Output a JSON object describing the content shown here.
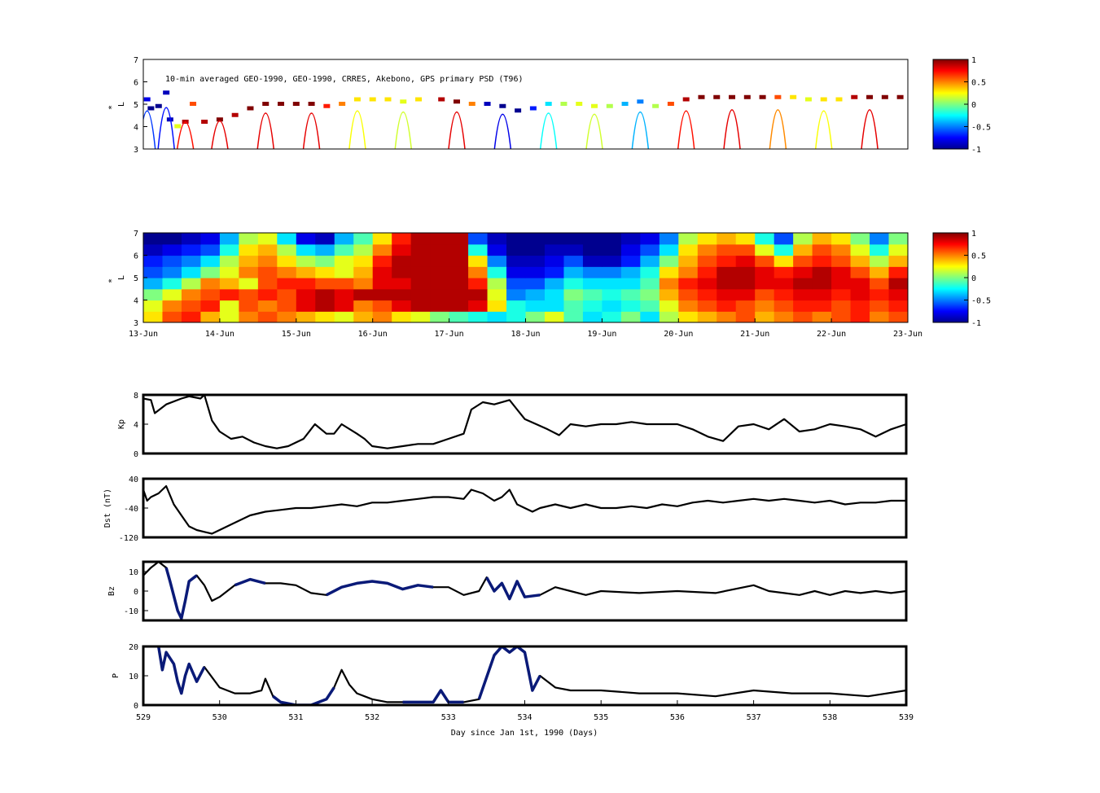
{
  "figure": {
    "annotation": "10-min averaged GEO-1990, GEO-1990, CRRES, Akebono, GPS  primary PSD (T96)",
    "xlabel_bottom": "Day since Jan 1st, 1990 (Days)"
  },
  "colors": {
    "line": "#000000",
    "highlight_series": "#0a1a78",
    "colormap": [
      "#00008f",
      "#0000ff",
      "#00ffff",
      "#ffff00",
      "#ff0000",
      "#800000"
    ]
  },
  "chart_data": [
    {
      "type": "scatter",
      "id": "psd-observed",
      "ylabel": "L*",
      "ylabel_parts": {
        "star": "*",
        "l": "L"
      },
      "ylim": [
        3,
        7
      ],
      "yticks": [
        "3",
        "4",
        "5",
        "6",
        "7"
      ],
      "xlim": [
        529,
        539
      ],
      "colorbar": {
        "range": [
          -1,
          1
        ],
        "ticks": [
          "1",
          "0.5",
          "0",
          "-0.5",
          "-1"
        ]
      },
      "note": "Colored points along satellite orbit tracks; values are normalized PSD in [-1,1]",
      "points": [
        [
          529.05,
          5.2,
          -0.8
        ],
        [
          529.1,
          4.8,
          -1
        ],
        [
          529.2,
          4.9,
          -1
        ],
        [
          529.3,
          5.5,
          -0.9
        ],
        [
          529.35,
          4.3,
          -0.9
        ],
        [
          529.45,
          4.0,
          0.2
        ],
        [
          529.55,
          4.2,
          0.9
        ],
        [
          529.65,
          5.0,
          0.6
        ],
        [
          529.8,
          4.2,
          0.9
        ],
        [
          530.0,
          4.3,
          1
        ],
        [
          530.2,
          4.5,
          0.9
        ],
        [
          530.4,
          4.8,
          1
        ],
        [
          530.6,
          5.0,
          1
        ],
        [
          530.8,
          5.0,
          1
        ],
        [
          531.0,
          5.0,
          1
        ],
        [
          531.2,
          5.0,
          1
        ],
        [
          531.4,
          4.9,
          0.7
        ],
        [
          531.6,
          5.0,
          0.5
        ],
        [
          531.8,
          5.2,
          0.3
        ],
        [
          532.0,
          5.2,
          0.3
        ],
        [
          532.2,
          5.2,
          0.3
        ],
        [
          532.4,
          5.1,
          0.2
        ],
        [
          532.6,
          5.2,
          0.3
        ],
        [
          532.9,
          5.2,
          0.9
        ],
        [
          533.1,
          5.1,
          1
        ],
        [
          533.3,
          5.0,
          0.5
        ],
        [
          533.5,
          5.0,
          -0.9
        ],
        [
          533.7,
          4.9,
          -1
        ],
        [
          533.9,
          4.7,
          -1
        ],
        [
          534.1,
          4.8,
          -0.7
        ],
        [
          534.3,
          5.0,
          -0.3
        ],
        [
          534.5,
          5.0,
          0.1
        ],
        [
          534.7,
          5.0,
          0.2
        ],
        [
          534.9,
          4.9,
          0.2
        ],
        [
          535.1,
          4.9,
          0.1
        ],
        [
          535.3,
          5.0,
          -0.4
        ],
        [
          535.5,
          5.1,
          -0.5
        ],
        [
          535.7,
          4.9,
          0.1
        ],
        [
          535.9,
          5.0,
          0.6
        ],
        [
          536.1,
          5.2,
          0.9
        ],
        [
          536.3,
          5.3,
          1
        ],
        [
          536.5,
          5.3,
          1
        ],
        [
          536.7,
          5.3,
          1
        ],
        [
          536.9,
          5.3,
          1
        ],
        [
          537.1,
          5.3,
          1
        ],
        [
          537.3,
          5.3,
          0.6
        ],
        [
          537.5,
          5.3,
          0.3
        ],
        [
          537.7,
          5.2,
          0.2
        ],
        [
          537.9,
          5.2,
          0.3
        ],
        [
          538.1,
          5.2,
          0.3
        ],
        [
          538.3,
          5.3,
          0.9
        ],
        [
          538.5,
          5.3,
          1
        ],
        [
          538.7,
          5.3,
          1
        ],
        [
          538.9,
          5.3,
          1
        ]
      ]
    },
    {
      "type": "heatmap",
      "id": "psd-assimilated",
      "ylabel": "L*",
      "ylabel_parts": {
        "star": "*",
        "l": "L"
      },
      "ylim": [
        3,
        7
      ],
      "yticks": [
        "3",
        "4",
        "5",
        "6",
        "7"
      ],
      "xticks": [
        "13-Jun",
        "14-Jun",
        "15-Jun",
        "16-Jun",
        "17-Jun",
        "18-Jun",
        "19-Jun",
        "20-Jun",
        "21-Jun",
        "22-Jun",
        "23-Jun"
      ],
      "colorbar": {
        "range": [
          -1,
          1
        ],
        "ticks": [
          "1",
          "0.5",
          "0",
          "-0.5",
          "-1"
        ]
      },
      "rows_L": [
        3.25,
        3.75,
        4.25,
        4.75,
        5.25,
        5.75,
        6.25,
        6.75
      ],
      "columns": 40,
      "values": [
        [
          0.3,
          0.6,
          0.7,
          0.4,
          0.2,
          0.5,
          0.6,
          0.5,
          0.4,
          0.3,
          0.2,
          0.4,
          0.5,
          0.3,
          0.2,
          0.0,
          -0.1,
          -0.2,
          -0.3,
          -0.2,
          0.0,
          0.2,
          -0.1,
          -0.3,
          -0.2,
          0.0,
          -0.3,
          0.1,
          0.3,
          0.4,
          0.5,
          0.6,
          0.4,
          0.5,
          0.6,
          0.5,
          0.6,
          0.7,
          0.5,
          0.6
        ],
        [
          0.2,
          0.5,
          0.6,
          0.7,
          0.2,
          0.6,
          0.5,
          0.6,
          0.8,
          0.9,
          0.8,
          0.5,
          0.6,
          0.8,
          0.9,
          0.9,
          0.9,
          0.8,
          0.3,
          -0.2,
          -0.3,
          -0.3,
          -0.1,
          -0.2,
          -0.3,
          -0.2,
          -0.1,
          0.2,
          0.5,
          0.6,
          0.7,
          0.6,
          0.5,
          0.6,
          0.7,
          0.7,
          0.6,
          0.7,
          0.6,
          0.7
        ],
        [
          0.0,
          0.2,
          0.5,
          0.6,
          0.7,
          0.6,
          0.7,
          0.6,
          0.8,
          0.9,
          0.8,
          0.9,
          0.9,
          0.9,
          0.9,
          0.9,
          0.9,
          0.9,
          0.2,
          -0.5,
          -0.4,
          -0.3,
          0.0,
          -0.1,
          -0.2,
          -0.1,
          0.0,
          0.4,
          0.6,
          0.7,
          0.8,
          0.8,
          0.6,
          0.7,
          0.8,
          0.8,
          0.7,
          0.8,
          0.7,
          0.8
        ],
        [
          -0.4,
          -0.2,
          0.1,
          0.5,
          0.4,
          0.2,
          0.6,
          0.7,
          0.7,
          0.6,
          0.6,
          0.5,
          0.8,
          0.8,
          0.9,
          0.9,
          0.9,
          0.7,
          0.1,
          -0.6,
          -0.6,
          -0.4,
          -0.2,
          -0.3,
          -0.3,
          -0.3,
          -0.1,
          0.5,
          0.7,
          0.8,
          0.9,
          0.9,
          0.8,
          0.8,
          0.9,
          0.9,
          0.8,
          0.8,
          0.6,
          0.9
        ],
        [
          -0.6,
          -0.5,
          -0.3,
          0.0,
          0.2,
          0.5,
          0.6,
          0.5,
          0.4,
          0.3,
          0.2,
          0.4,
          0.8,
          0.9,
          0.9,
          0.9,
          0.9,
          0.5,
          -0.2,
          -0.8,
          -0.8,
          -0.7,
          -0.4,
          -0.5,
          -0.5,
          -0.4,
          -0.2,
          0.3,
          0.5,
          0.7,
          0.9,
          0.9,
          0.8,
          0.7,
          0.8,
          0.9,
          0.8,
          0.6,
          0.4,
          0.7
        ],
        [
          -0.7,
          -0.6,
          -0.5,
          -0.3,
          0.1,
          0.4,
          0.5,
          0.3,
          0.1,
          0.0,
          0.2,
          0.3,
          0.7,
          0.9,
          0.9,
          0.9,
          0.9,
          0.3,
          -0.5,
          -0.9,
          -0.9,
          -0.8,
          -0.6,
          -0.9,
          -0.9,
          -0.7,
          -0.4,
          0.0,
          0.4,
          0.6,
          0.7,
          0.8,
          0.6,
          0.3,
          0.6,
          0.7,
          0.6,
          0.4,
          0.1,
          0.4
        ],
        [
          -0.9,
          -0.8,
          -0.7,
          -0.6,
          -0.2,
          0.3,
          0.4,
          0.1,
          -0.3,
          -0.4,
          -0.1,
          0.1,
          0.5,
          0.8,
          0.9,
          0.9,
          0.9,
          -0.2,
          -0.8,
          -1.0,
          -1.0,
          -0.9,
          -0.9,
          -1.0,
          -1.0,
          -0.8,
          -0.6,
          -0.3,
          0.3,
          0.5,
          0.6,
          0.6,
          0.2,
          -0.2,
          0.4,
          0.6,
          0.5,
          0.2,
          -0.2,
          0.2
        ],
        [
          -1.0,
          -1.0,
          -0.9,
          -0.8,
          -0.4,
          0.1,
          0.2,
          -0.3,
          -0.8,
          -0.9,
          -0.4,
          -0.1,
          0.3,
          0.7,
          0.9,
          0.9,
          0.9,
          -0.6,
          -0.9,
          -1.0,
          -1.0,
          -1.0,
          -1.0,
          -1.0,
          -1.0,
          -0.9,
          -0.8,
          -0.5,
          0.1,
          0.3,
          0.4,
          0.3,
          -0.2,
          -0.6,
          0.1,
          0.4,
          0.3,
          0.0,
          -0.5,
          0.0
        ]
      ]
    },
    {
      "type": "line",
      "id": "kp",
      "ylabel": "Kp",
      "ylim": [
        0,
        8
      ],
      "yticks": [
        "0",
        "4",
        "8"
      ],
      "xlim": [
        529,
        539
      ],
      "x": [
        529.0,
        529.1,
        529.15,
        529.3,
        529.5,
        529.6,
        529.75,
        529.8,
        529.9,
        530.0,
        530.15,
        530.3,
        530.45,
        530.6,
        530.75,
        530.9,
        531.1,
        531.25,
        531.4,
        531.5,
        531.6,
        531.8,
        531.9,
        532.0,
        532.2,
        532.4,
        532.6,
        532.8,
        533.0,
        533.2,
        533.3,
        533.45,
        533.6,
        533.8,
        533.9,
        534.0,
        534.15,
        534.3,
        534.45,
        534.6,
        534.8,
        535.0,
        535.2,
        535.4,
        535.6,
        535.8,
        536.0,
        536.2,
        536.4,
        536.6,
        536.8,
        537.0,
        537.2,
        537.4,
        537.6,
        537.8,
        538.0,
        538.2,
        538.4,
        538.6,
        538.8,
        539.0
      ],
      "y": [
        7.5,
        7.3,
        5.5,
        6.7,
        7.5,
        7.8,
        7.5,
        8.0,
        4.5,
        3.0,
        2.0,
        2.3,
        1.5,
        1.0,
        0.7,
        1.0,
        2.0,
        4.0,
        2.7,
        2.7,
        4.0,
        2.7,
        2.0,
        1.0,
        0.7,
        1.0,
        1.3,
        1.3,
        2.0,
        2.7,
        6.0,
        7.0,
        6.7,
        7.3,
        6.0,
        4.7,
        4.0,
        3.3,
        2.5,
        4.0,
        3.7,
        4.0,
        4.0,
        4.3,
        4.0,
        4.0,
        4.0,
        3.3,
        2.3,
        1.7,
        3.7,
        4.0,
        3.3,
        4.7,
        3.0,
        3.3,
        4.0,
        3.7,
        3.3,
        2.3,
        3.3,
        4.0
      ]
    },
    {
      "type": "line",
      "id": "dst",
      "ylabel": "Dst (nT)",
      "ylim": [
        -120,
        40
      ],
      "yticks": [
        "-120",
        "-40",
        "40"
      ],
      "xlim": [
        529,
        539
      ],
      "x": [
        529.0,
        529.05,
        529.1,
        529.2,
        529.3,
        529.4,
        529.5,
        529.6,
        529.7,
        529.8,
        529.9,
        530.0,
        530.2,
        530.4,
        530.6,
        530.8,
        531.0,
        531.2,
        531.4,
        531.6,
        531.8,
        532.0,
        532.2,
        532.4,
        532.6,
        532.8,
        533.0,
        533.2,
        533.3,
        533.45,
        533.6,
        533.7,
        533.8,
        533.9,
        534.0,
        534.1,
        534.2,
        534.4,
        534.6,
        534.8,
        535.0,
        535.2,
        535.4,
        535.6,
        535.8,
        536.0,
        536.2,
        536.4,
        536.6,
        536.8,
        537.0,
        537.2,
        537.4,
        537.6,
        537.8,
        538.0,
        538.2,
        538.4,
        538.6,
        538.8,
        539.0
      ],
      "y": [
        10,
        -20,
        -10,
        0,
        20,
        -30,
        -60,
        -90,
        -100,
        -105,
        -110,
        -100,
        -80,
        -60,
        -50,
        -45,
        -40,
        -40,
        -35,
        -30,
        -35,
        -25,
        -25,
        -20,
        -15,
        -10,
        -10,
        -15,
        10,
        0,
        -20,
        -10,
        10,
        -30,
        -40,
        -50,
        -40,
        -30,
        -40,
        -30,
        -40,
        -40,
        -35,
        -40,
        -30,
        -35,
        -25,
        -20,
        -25,
        -20,
        -15,
        -20,
        -15,
        -20,
        -25,
        -20,
        -30,
        -25,
        -25,
        -20,
        -20
      ]
    },
    {
      "type": "line",
      "id": "bz",
      "ylabel": "Bz",
      "ylim": [
        -15,
        15
      ],
      "yticks": [
        "-10",
        "0",
        "10"
      ],
      "xlim": [
        529,
        539
      ],
      "x": [
        529.0,
        529.1,
        529.2,
        529.3,
        529.35,
        529.45,
        529.5,
        529.55,
        529.6,
        529.7,
        529.8,
        529.9,
        530.0,
        530.2,
        530.4,
        530.6,
        530.8,
        531.0,
        531.2,
        531.4,
        531.6,
        531.8,
        532.0,
        532.2,
        532.4,
        532.6,
        532.8,
        533.0,
        533.2,
        533.4,
        533.5,
        533.6,
        533.7,
        533.8,
        533.9,
        534.0,
        534.2,
        534.4,
        534.6,
        534.8,
        535.0,
        535.5,
        536.0,
        536.5,
        537.0,
        537.2,
        537.4,
        537.6,
        537.8,
        538.0,
        538.2,
        538.4,
        538.6,
        538.8,
        539.0
      ],
      "y": [
        8,
        12,
        15,
        12,
        5,
        -10,
        -14,
        -5,
        5,
        8,
        3,
        -5,
        -3,
        3,
        6,
        4,
        4,
        3,
        -1,
        -2,
        2,
        4,
        5,
        4,
        1,
        3,
        2,
        2,
        -2,
        0,
        7,
        0,
        4,
        -4,
        5,
        -3,
        -2,
        2,
        0,
        -2,
        0,
        -1,
        0,
        -1,
        3,
        0,
        -1,
        -2,
        0,
        -2,
        0,
        -1,
        0,
        -1,
        0
      ],
      "highlight_ranges": [
        [
          529.25,
          529.7
        ],
        [
          530.1,
          530.75
        ],
        [
          531.35,
          532.95
        ],
        [
          533.45,
          534.3
        ]
      ]
    },
    {
      "type": "line",
      "id": "p",
      "ylabel": "P",
      "ylim": [
        0,
        20
      ],
      "yticks": [
        "0",
        "10",
        "20"
      ],
      "xlim": [
        529,
        539
      ],
      "xticks": [
        "529",
        "530",
        "531",
        "532",
        "533",
        "534",
        "535",
        "536",
        "537",
        "538",
        "539"
      ],
      "x": [
        529.0,
        529.2,
        529.25,
        529.3,
        529.4,
        529.45,
        529.5,
        529.55,
        529.6,
        529.7,
        529.8,
        530.0,
        530.2,
        530.4,
        530.55,
        530.6,
        530.7,
        530.8,
        531.0,
        531.2,
        531.4,
        531.5,
        531.6,
        531.7,
        531.8,
        532.0,
        532.2,
        532.4,
        532.6,
        532.8,
        532.9,
        533.0,
        533.2,
        533.4,
        533.6,
        533.7,
        533.8,
        533.9,
        534.0,
        534.1,
        534.2,
        534.4,
        534.6,
        534.8,
        535.0,
        535.5,
        536.0,
        536.5,
        537.0,
        537.5,
        538.0,
        538.5,
        539.0
      ],
      "y": [
        null,
        20,
        12,
        18,
        14,
        8,
        4,
        10,
        14,
        8,
        13,
        6,
        4,
        4,
        5,
        9,
        3,
        1,
        0,
        0,
        2,
        6,
        12,
        7,
        4,
        2,
        1,
        1,
        1,
        1,
        5,
        1,
        1,
        2,
        17,
        20,
        18,
        20,
        18,
        5,
        10,
        6,
        5,
        5,
        5,
        4,
        4,
        3,
        5,
        4,
        4,
        3,
        5
      ],
      "highlight_ranges": [
        [
          529.15,
          529.9
        ],
        [
          530.7,
          531.5
        ],
        [
          532.3,
          533.25
        ],
        [
          533.3,
          534.3
        ]
      ]
    }
  ]
}
